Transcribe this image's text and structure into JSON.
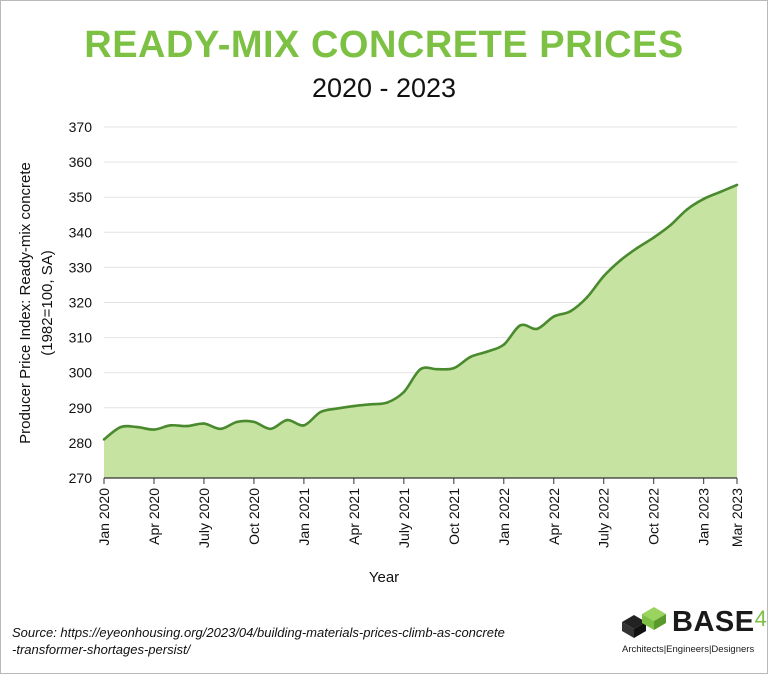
{
  "header": {
    "title": "READY-MIX CONCRETE PRICES",
    "subtitle": "2020 - 2023"
  },
  "chart_data": {
    "type": "area",
    "title": "READY-MIX CONCRETE PRICES",
    "subtitle": "2020 - 2023",
    "xlabel": "Year",
    "ylabel_lines": [
      "Producer Price Index: Ready-mix concrete",
      "(1982=100, SA)"
    ],
    "ylim": [
      270,
      370
    ],
    "yticks": [
      270,
      280,
      290,
      300,
      310,
      320,
      330,
      340,
      350,
      360,
      370
    ],
    "x_tick_labels": [
      "Jan 2020",
      "Apr 2020",
      "July 2020",
      "Oct 2020",
      "Jan 2021",
      "Apr 2021",
      "July 2021",
      "Oct 2021",
      "Jan 2022",
      "Apr 2022",
      "July 2022",
      "Oct 2022",
      "Jan 2023",
      "Mar 2023"
    ],
    "x_tick_month_index": [
      0,
      3,
      6,
      9,
      12,
      15,
      18,
      21,
      24,
      27,
      30,
      33,
      36,
      38
    ],
    "grid": "horizontal",
    "legend": "none",
    "colors": {
      "fill": "#c7e3a2",
      "line": "#4a8a2e",
      "grid": "#e3e3e3"
    },
    "series": [
      {
        "x": [
          "2020-01",
          "2020-02",
          "2020-03",
          "2020-04",
          "2020-05",
          "2020-06",
          "2020-07",
          "2020-08",
          "2020-09",
          "2020-10",
          "2020-11",
          "2020-12",
          "2021-01",
          "2021-02",
          "2021-03",
          "2021-04",
          "2021-05",
          "2021-06",
          "2021-07",
          "2021-08",
          "2021-09",
          "2021-10",
          "2021-11",
          "2021-12",
          "2022-01",
          "2022-02",
          "2022-03",
          "2022-04",
          "2022-05",
          "2022-06",
          "2022-07",
          "2022-08",
          "2022-09",
          "2022-10",
          "2022-11",
          "2022-12",
          "2023-01",
          "2023-02",
          "2023-03"
        ],
        "values": [
          281,
          284.5,
          284.5,
          283.8,
          285,
          284.8,
          285.5,
          284,
          286,
          286,
          284,
          286.5,
          285,
          288.8,
          289.8,
          290.5,
          291,
          291.5,
          294.5,
          301,
          301,
          301.3,
          304.5,
          306,
          308,
          313.5,
          312.5,
          316,
          317.5,
          321.5,
          327.5,
          332,
          335.5,
          338.5,
          342,
          346.5,
          349.5,
          351.5,
          353.5
        ]
      }
    ]
  },
  "footer": {
    "source_line1": "Source: https://eyeonhousing.org/2023/04/building-materials-prices-climb-as-concrete",
    "source_line2": "-transformer-shortages-persist/"
  },
  "logo": {
    "name": "BASE",
    "number": "4",
    "tagline": "Architects|Engineers|Designers"
  }
}
